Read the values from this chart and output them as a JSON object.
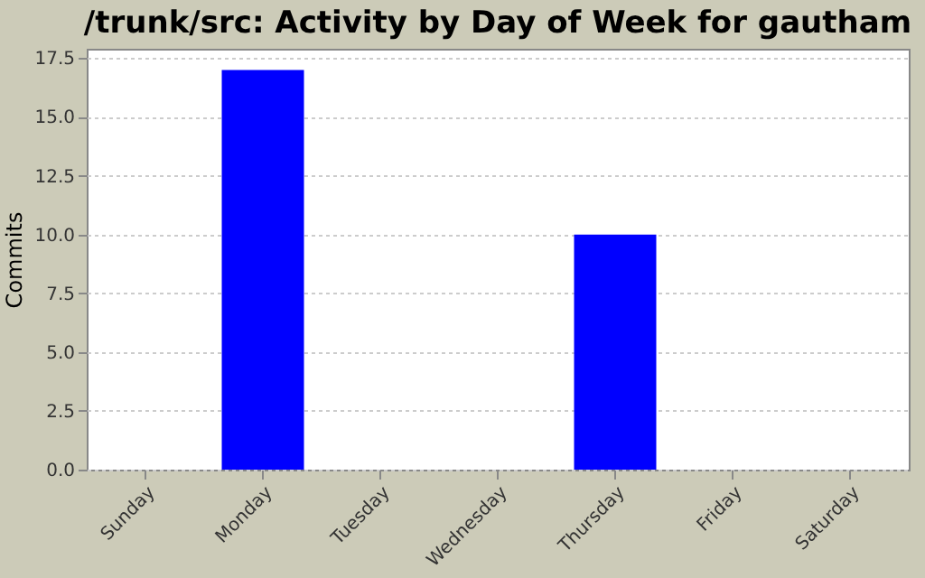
{
  "chart_data": {
    "type": "bar",
    "title": "/trunk/src: Activity by Day of Week for gautham",
    "ylabel": "Commits",
    "categories": [
      "Sunday",
      "Monday",
      "Tuesday",
      "Wednesday",
      "Thursday",
      "Friday",
      "Saturday"
    ],
    "values": [
      0,
      17,
      0,
      0,
      10,
      0,
      0
    ],
    "color": "#0000ff",
    "ylim": [
      0,
      17.9
    ],
    "yticks": [
      {
        "value": 0,
        "label": "0.0"
      },
      {
        "value": 2.5,
        "label": "2.5"
      },
      {
        "value": 5,
        "label": "5.0"
      },
      {
        "value": 7.5,
        "label": "7.5"
      },
      {
        "value": 10,
        "label": "10.0"
      },
      {
        "value": 12.5,
        "label": "12.5"
      },
      {
        "value": 15,
        "label": "15.0"
      },
      {
        "value": 17.5,
        "label": "17.5"
      }
    ],
    "grid": "y"
  }
}
